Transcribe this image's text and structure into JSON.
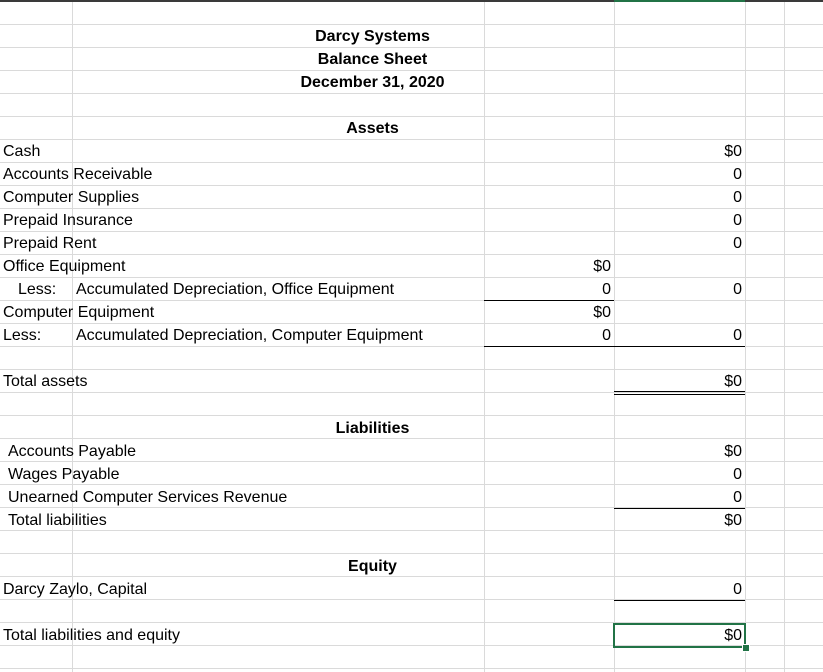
{
  "header": {
    "company": "Darcy Systems",
    "report": "Balance Sheet",
    "date": "December 31, 2020"
  },
  "assets": {
    "heading": "Assets",
    "cash": {
      "label": "Cash",
      "d": "$0"
    },
    "accounts_receivable": {
      "label": "Accounts Receivable",
      "d": "0"
    },
    "computer_supplies": {
      "label": "Computer Supplies",
      "d": "0"
    },
    "prepaid_insurance": {
      "label": "Prepaid Insurance",
      "d": "0"
    },
    "prepaid_rent": {
      "label": "Prepaid Rent",
      "d": "0"
    },
    "office_equipment": {
      "label": "Office Equipment",
      "c": "$0"
    },
    "accum_dep_office": {
      "prefix": "Less:",
      "label": "Accumulated Depreciation, Office Equipment",
      "c": "0",
      "d": "0"
    },
    "computer_equipment": {
      "label": "Computer Equipment",
      "c": "$0"
    },
    "accum_dep_computer": {
      "prefix": "Less:",
      "label": "Accumulated Depreciation, Computer Equipment",
      "c": "0",
      "d": "0"
    },
    "total": {
      "label": "Total assets",
      "d": "$0"
    }
  },
  "liabilities": {
    "heading": "Liabilities",
    "accounts_payable": {
      "label": "Accounts Payable",
      "d": "$0"
    },
    "wages_payable": {
      "label": "Wages Payable",
      "d": "0"
    },
    "unearned_revenue": {
      "label": "Unearned Computer Services Revenue",
      "d": "0"
    },
    "total": {
      "label": "Total liabilities",
      "d": "$0"
    }
  },
  "equity": {
    "heading": "Equity",
    "capital": {
      "label": "Darcy Zaylo, Capital",
      "d": "0"
    },
    "total_liabilities_equity": {
      "label": "Total liabilities and equity",
      "d": "$0"
    }
  },
  "colors": {
    "selection": "#217346",
    "gridline": "#dadada"
  }
}
